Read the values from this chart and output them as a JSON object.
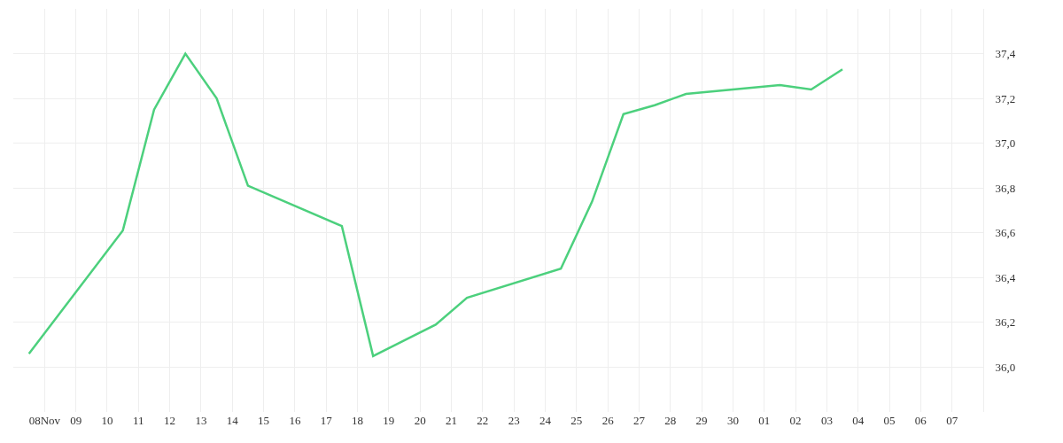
{
  "chart_data": {
    "type": "line",
    "x": [
      "--11-07T12:00",
      "--11-10T12:00",
      "--11-11T12:00",
      "--11-12T12:00",
      "--11-13T12:00",
      "--11-14T12:00",
      "--11-17T12:00",
      "--11-18T12:00",
      "--11-19T12:00",
      "--11-20T12:00",
      "--11-21T12:00",
      "--11-24T12:00",
      "--11-25T12:00",
      "--11-26T12:00",
      "--11-27T12:00",
      "--11-28T12:00",
      "--12-01T12:00",
      "--12-02T12:00",
      "--12-03T12:00"
    ],
    "series": [
      {
        "color": "#4cd07d",
        "values": [
          36.06,
          36.61,
          37.15,
          37.4,
          37.2,
          36.81,
          36.63,
          36.05,
          36.12,
          36.19,
          36.31,
          36.44,
          36.74,
          37.13,
          37.17,
          37.22,
          37.26,
          37.24,
          37.33
        ]
      }
    ],
    "xlim": [
      "--11-07",
      "--12-08"
    ],
    "xticks": [
      {
        "value": "--11-08",
        "label": "08Nov"
      },
      {
        "value": "--11-09",
        "label": "09"
      },
      {
        "value": "--11-10",
        "label": "10"
      },
      {
        "value": "--11-11",
        "label": "11"
      },
      {
        "value": "--11-12",
        "label": "12"
      },
      {
        "value": "--11-13",
        "label": "13"
      },
      {
        "value": "--11-14",
        "label": "14"
      },
      {
        "value": "--11-15",
        "label": "15"
      },
      {
        "value": "--11-16",
        "label": "16"
      },
      {
        "value": "--11-17",
        "label": "17"
      },
      {
        "value": "--11-18",
        "label": "18"
      },
      {
        "value": "--11-19",
        "label": "19"
      },
      {
        "value": "--11-20",
        "label": "20"
      },
      {
        "value": "--11-21",
        "label": "21"
      },
      {
        "value": "--11-22",
        "label": "22"
      },
      {
        "value": "--11-23",
        "label": "23"
      },
      {
        "value": "--11-24",
        "label": "24"
      },
      {
        "value": "--11-25",
        "label": "25"
      },
      {
        "value": "--11-26",
        "label": "26"
      },
      {
        "value": "--11-27",
        "label": "27"
      },
      {
        "value": "--11-28",
        "label": "28"
      },
      {
        "value": "--11-29",
        "label": "29"
      },
      {
        "value": "--11-30",
        "label": "30"
      },
      {
        "value": "--12-01",
        "label": "01"
      },
      {
        "value": "--12-02",
        "label": "02"
      },
      {
        "value": "--12-03",
        "label": "03"
      },
      {
        "value": "--12-04",
        "label": "04"
      },
      {
        "value": "--12-05",
        "label": "05"
      },
      {
        "value": "--12-06",
        "label": "06"
      },
      {
        "value": "--12-07",
        "label": "07"
      }
    ],
    "ylim": [
      35.8,
      37.6
    ],
    "yticks": [
      {
        "value": 36.0,
        "label": "36,0"
      },
      {
        "value": 36.2,
        "label": "36,2"
      },
      {
        "value": 36.4,
        "label": "36,4"
      },
      {
        "value": 36.6,
        "label": "36,6"
      },
      {
        "value": 36.8,
        "label": "36,8"
      },
      {
        "value": 37.0,
        "label": "37,0"
      },
      {
        "value": 37.2,
        "label": "37,2"
      },
      {
        "value": 37.4,
        "label": "37,4"
      }
    ],
    "grid": true,
    "marker": "none",
    "line_style": "solid"
  }
}
